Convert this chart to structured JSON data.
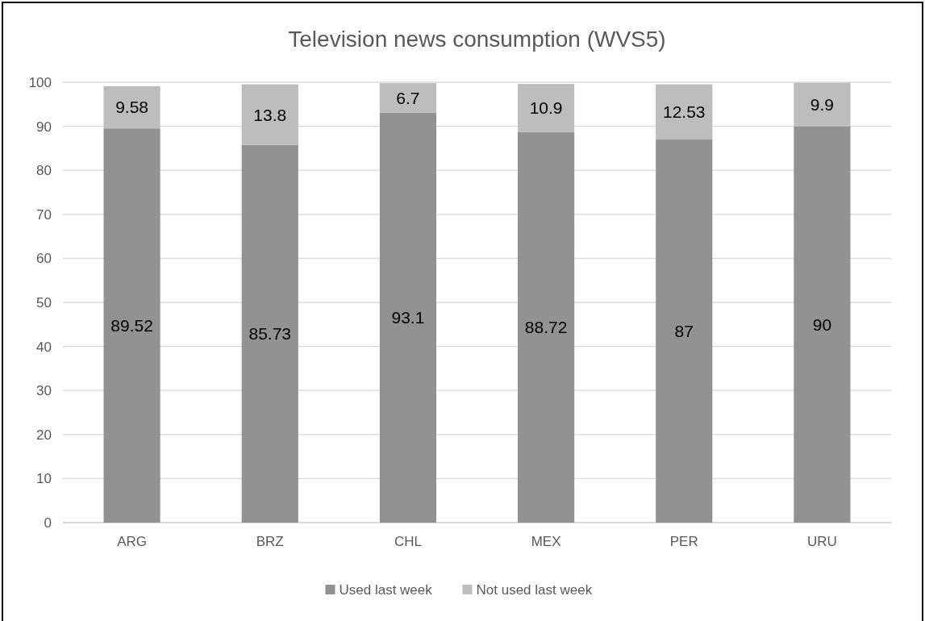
{
  "chart_data": {
    "type": "bar",
    "title": "Television news consumption (WVS5)",
    "categories": [
      "ARG",
      "BRZ",
      "CHL",
      "MEX",
      "PER",
      "URU"
    ],
    "stacked": true,
    "series": [
      {
        "name": "Used last week",
        "color": "#929292",
        "values": [
          89.52,
          85.73,
          93.1,
          88.72,
          87,
          90
        ]
      },
      {
        "name": "Not used last week",
        "color": "#bdbdbd",
        "values": [
          9.58,
          13.8,
          6.7,
          10.9,
          12.53,
          9.9
        ]
      }
    ],
    "ylim": [
      0,
      100
    ],
    "yticks": [
      0,
      10,
      20,
      30,
      40,
      50,
      60,
      70,
      80,
      90,
      100
    ],
    "grid": "y",
    "legend": "bottom",
    "data_labels": true
  }
}
